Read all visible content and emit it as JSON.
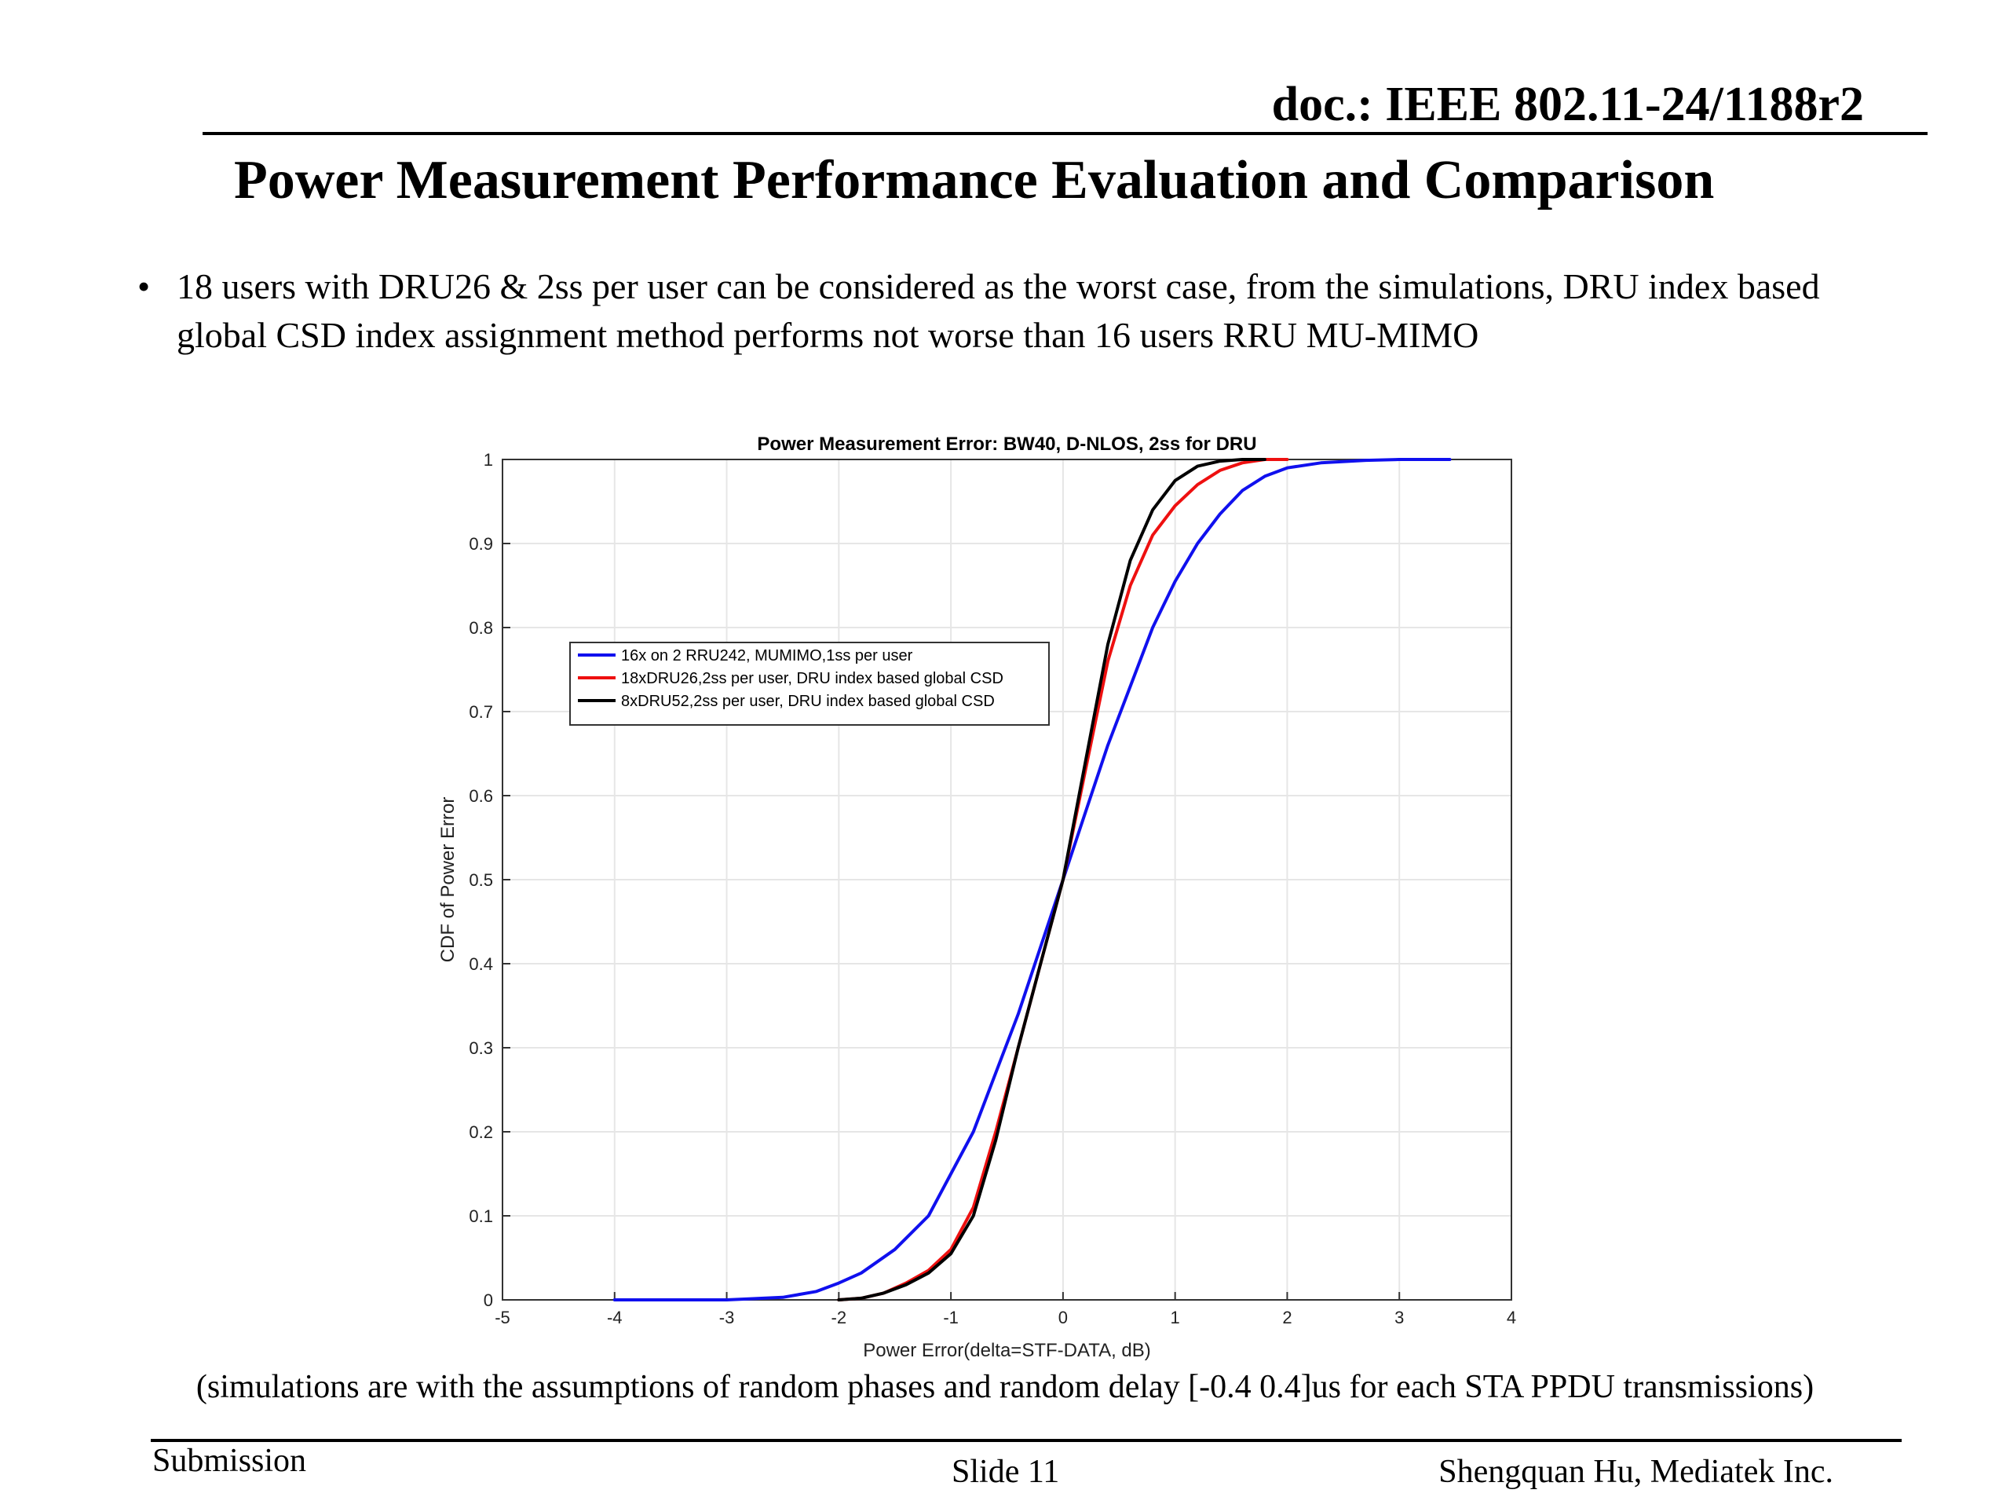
{
  "header": {
    "doc_id": "doc.: IEEE 802.11-24/1188r2",
    "title": "Power Measurement Performance Evaluation and Comparison"
  },
  "bullet": {
    "text": "18 users with DRU26 & 2ss per user can be considered as the worst case, from the simulations, DRU index based global CSD index assignment method performs not worse than 16 users RRU MU-MIMO"
  },
  "footnote": "(simulations are with the assumptions of  random phases and random delay [-0.4 0.4]us for each STA PPDU transmissions)",
  "footer": {
    "left": "Submission",
    "center": "Slide 11",
    "right": "Shengquan Hu, Mediatek Inc."
  },
  "colors": {
    "blue": "#1010ee",
    "red": "#ee1010",
    "black": "#000000",
    "grid": "#e6e6e6"
  },
  "chart_data": {
    "type": "line",
    "title": "Power Measurement Error: BW40, D-NLOS, 2ss for DRU",
    "xlabel": "Power Error(delta=STF-DATA, dB)",
    "ylabel": "CDF of Power Error",
    "xlim": [
      -5,
      4
    ],
    "ylim": [
      0,
      1
    ],
    "xticks": [
      "-5",
      "-4",
      "-3",
      "-2",
      "-1",
      "0",
      "1",
      "2",
      "3",
      "4"
    ],
    "yticks": [
      "0",
      "0.1",
      "0.2",
      "0.3",
      "0.4",
      "0.5",
      "0.6",
      "0.7",
      "0.8",
      "0.9",
      "1"
    ],
    "grid": true,
    "legend_position": "upper-left",
    "series": [
      {
        "name": "16x on 2 RRU242, MUMIMO,1ss per user",
        "color": "#1010ee",
        "x": [
          -4.0,
          -3.0,
          -2.5,
          -2.2,
          -2.0,
          -1.8,
          -1.5,
          -1.2,
          -1.0,
          -0.8,
          -0.6,
          -0.4,
          -0.2,
          0.0,
          0.2,
          0.4,
          0.6,
          0.8,
          1.0,
          1.2,
          1.4,
          1.6,
          1.8,
          2.0,
          2.3,
          2.7,
          3.0,
          3.45
        ],
        "y": [
          0.0,
          0.0,
          0.003,
          0.01,
          0.02,
          0.032,
          0.06,
          0.1,
          0.15,
          0.2,
          0.27,
          0.34,
          0.42,
          0.5,
          0.58,
          0.66,
          0.73,
          0.8,
          0.855,
          0.9,
          0.935,
          0.963,
          0.98,
          0.99,
          0.996,
          0.999,
          1.0,
          1.0
        ]
      },
      {
        "name": "18xDRU26,2ss per user, DRU index based global CSD",
        "color": "#ee1010",
        "x": [
          -2.0,
          -1.8,
          -1.6,
          -1.4,
          -1.2,
          -1.0,
          -0.8,
          -0.6,
          -0.4,
          -0.2,
          0.0,
          0.2,
          0.4,
          0.6,
          0.8,
          1.0,
          1.2,
          1.4,
          1.6,
          1.8,
          2.0
        ],
        "y": [
          0.0,
          0.002,
          0.008,
          0.02,
          0.035,
          0.06,
          0.11,
          0.2,
          0.3,
          0.4,
          0.5,
          0.63,
          0.76,
          0.85,
          0.91,
          0.945,
          0.97,
          0.987,
          0.996,
          1.0,
          1.0
        ]
      },
      {
        "name": "8xDRU52,2ss per user, DRU index based global CSD",
        "color": "#000000",
        "x": [
          -2.0,
          -1.8,
          -1.6,
          -1.4,
          -1.2,
          -1.0,
          -0.8,
          -0.6,
          -0.4,
          -0.2,
          0.0,
          0.2,
          0.4,
          0.6,
          0.8,
          1.0,
          1.2,
          1.4,
          1.6,
          1.8
        ],
        "y": [
          0.0,
          0.002,
          0.008,
          0.018,
          0.032,
          0.055,
          0.1,
          0.19,
          0.3,
          0.4,
          0.5,
          0.64,
          0.78,
          0.88,
          0.94,
          0.975,
          0.992,
          0.998,
          1.0,
          1.0
        ]
      }
    ]
  }
}
